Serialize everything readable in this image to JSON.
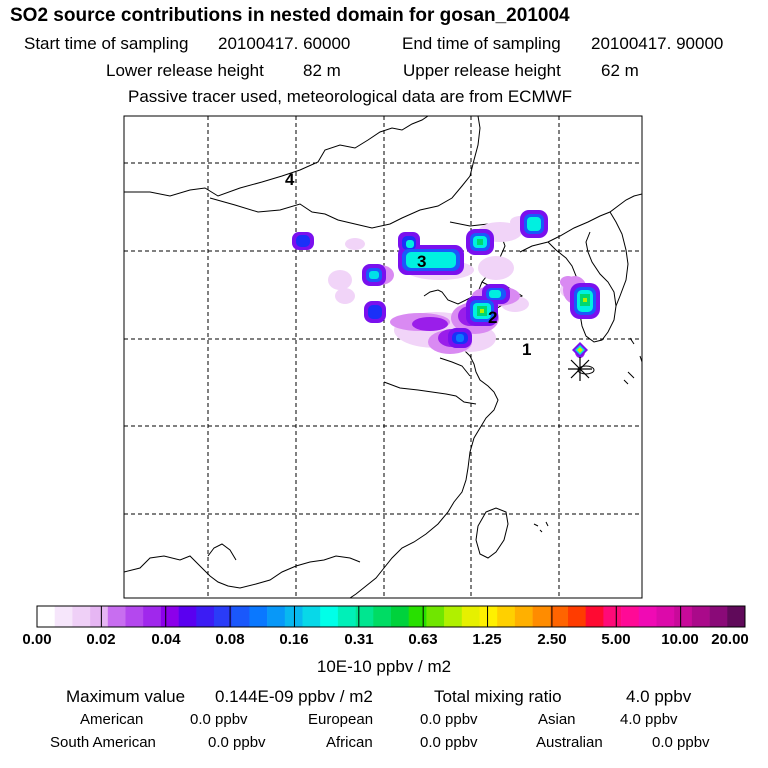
{
  "title": "SO2 source contributions in nested domain for gosan_201004",
  "sampling": {
    "start_label": "Start time of sampling",
    "start_value": "20100417. 60000",
    "end_label": "End time of sampling",
    "end_value": "20100417. 90000"
  },
  "release": {
    "lower_label": "Lower release height",
    "lower_value": "82 m",
    "upper_label": "Upper release height",
    "upper_value": "62 m"
  },
  "note": "Passive tracer used, meteorological data are from ECMWF",
  "map": {
    "region_labels": [
      "1",
      "2",
      "3",
      "4"
    ],
    "receptor_marker": "asterisk-icon"
  },
  "colorbar": {
    "labels": [
      "0.00",
      "0.02",
      "0.04",
      "0.08",
      "0.16",
      "0.31",
      "0.63",
      "1.25",
      "2.50",
      "5.00",
      "10.00",
      "20.00"
    ],
    "units": "10E-10 ppbv / m2",
    "colors": [
      "#ffffff",
      "#f6e6fb",
      "#efd0f7",
      "#e6b6f3",
      "#c86ef0",
      "#b448ee",
      "#a028ec",
      "#8c00ea",
      "#5a00f0",
      "#3c1cf4",
      "#2a3cf8",
      "#1a58fb",
      "#0a78ff",
      "#0898f8",
      "#08b8f0",
      "#08d8e8",
      "#00ffe8",
      "#00f0b8",
      "#00e690",
      "#00dc64",
      "#00d23c",
      "#28e000",
      "#70e600",
      "#b0f000",
      "#e6f000",
      "#fff000",
      "#ffd000",
      "#ffb000",
      "#ff8c00",
      "#ff6400",
      "#ff3c00",
      "#ff0a32",
      "#ff0a78",
      "#ff0a96",
      "#f00ab4",
      "#dc0aaa",
      "#c80a9a",
      "#aa0a8a",
      "#8a0a78",
      "#600a5a"
    ]
  },
  "stats": {
    "max_label": "Maximum value",
    "max_value": "0.144E-09 ppbv / m2",
    "total_label": "Total mixing ratio",
    "total_value": "4.0 ppbv",
    "regions": [
      {
        "name": "American",
        "value": "0.0 ppbv"
      },
      {
        "name": "European",
        "value": "0.0 ppbv"
      },
      {
        "name": "Asian",
        "value": "4.0 ppbv"
      },
      {
        "name": "South American",
        "value": "0.0 ppbv"
      },
      {
        "name": "African",
        "value": "0.0 ppbv"
      },
      {
        "name": "Australian",
        "value": "0.0 ppbv"
      }
    ]
  }
}
